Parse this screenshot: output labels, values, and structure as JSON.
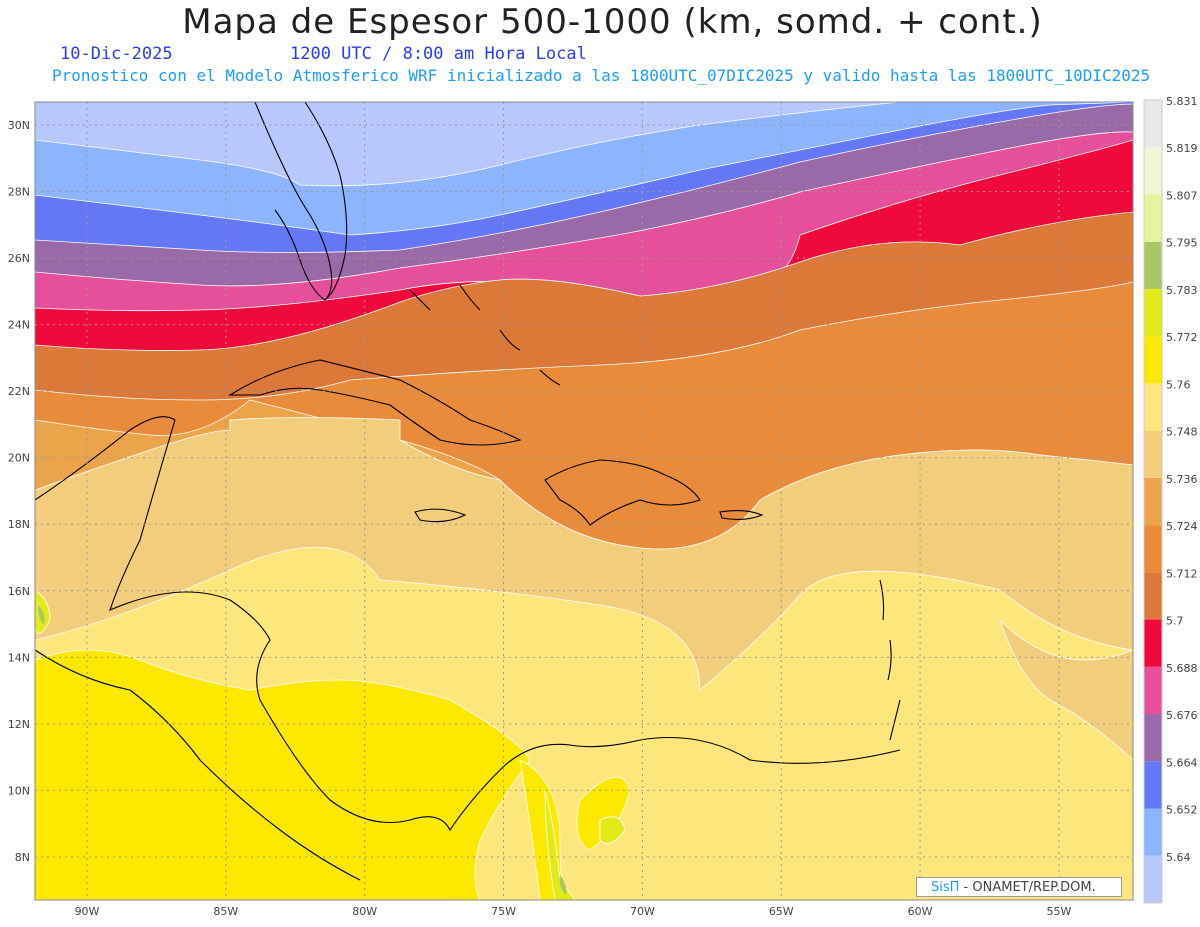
{
  "title": "Mapa de Espesor 500-1000 (km, somd. + cont.)",
  "date": "10-Dic-2025",
  "time": "1200 UTC / 8:00 am Hora Local",
  "subtitle": "Pronostico con el Modelo Atmosferico WRF inicializado a las 1800UTC_07DIC2025 y valido hasta las  1800UTC_10DIC2025",
  "credit": {
    "brand": "SisΠ",
    "text": " - ONAMET/REP.DOM."
  },
  "lat_labels": [
    {
      "v": 30,
      "t": "30N"
    },
    {
      "v": 28,
      "t": "28N"
    },
    {
      "v": 26,
      "t": "26N"
    },
    {
      "v": 24,
      "t": "24N"
    },
    {
      "v": 22,
      "t": "22N"
    },
    {
      "v": 20,
      "t": "20N"
    },
    {
      "v": 18,
      "t": "18N"
    },
    {
      "v": 16,
      "t": "16N"
    },
    {
      "v": 14,
      "t": "14N"
    },
    {
      "v": 12,
      "t": "12N"
    },
    {
      "v": 10,
      "t": "10N"
    },
    {
      "v": 8,
      "t": "8N"
    }
  ],
  "lon_labels": [
    {
      "v": -90,
      "t": "90W"
    },
    {
      "v": -85,
      "t": "85W"
    },
    {
      "v": -80,
      "t": "80W"
    },
    {
      "v": -75,
      "t": "75W"
    },
    {
      "v": -70,
      "t": "70W"
    },
    {
      "v": -65,
      "t": "65W"
    },
    {
      "v": -60,
      "t": "60W"
    },
    {
      "v": -55,
      "t": "55W"
    }
  ],
  "colorbar": {
    "colors": [
      "#b8c8ff",
      "#8cb4ff",
      "#6478f5",
      "#9a6aa8",
      "#e6509a",
      "#f00a3c",
      "#dc7838",
      "#e88c3c",
      "#eca44a",
      "#f2cd7c",
      "#fde67c",
      "#fde800",
      "#e2ea18",
      "#a8c864",
      "#e4f4a0",
      "#eef6d4",
      "#e8e8e8"
    ],
    "labels": [
      "5.64",
      "5.652",
      "5.664",
      "5.676",
      "5.688",
      "5.7",
      "5.712",
      "5.724",
      "5.736",
      "5.748",
      "5.76",
      "5.772",
      "5.783",
      "5.795",
      "5.807",
      "5.819",
      "5.831"
    ]
  }
}
